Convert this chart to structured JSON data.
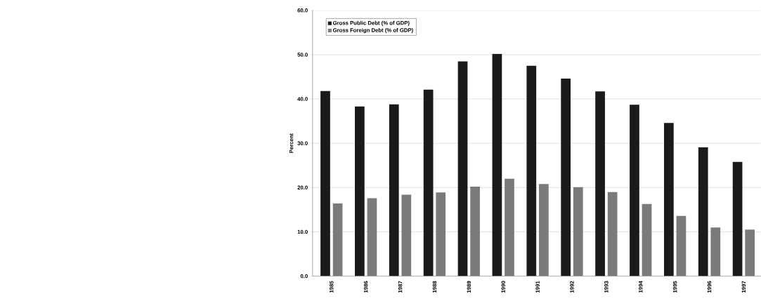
{
  "chart_data": {
    "type": "bar",
    "ylabel": "Percent",
    "categories": [
      "1985",
      "1986",
      "1987",
      "1988",
      "1989",
      "1990",
      "1991",
      "1992",
      "1993",
      "1994",
      "1995",
      "1996",
      "1997"
    ],
    "series": [
      {
        "name": "Gross Public Debt (% of GDP)",
        "color": "#1a1a1a",
        "values": [
          41.8,
          38.3,
          38.8,
          42.1,
          48.5,
          50.2,
          47.5,
          44.6,
          41.7,
          38.7,
          34.6,
          29.1,
          25.8
        ]
      },
      {
        "name": "Gross Foreign Debt (% of GDP)",
        "color": "#7a7a7a",
        "values": [
          16.4,
          17.6,
          18.4,
          18.9,
          20.2,
          22.0,
          20.8,
          20.1,
          19.0,
          16.3,
          13.6,
          11.0,
          10.5
        ]
      }
    ],
    "ylim": [
      0,
      60
    ],
    "yticks": [
      {
        "value": 0,
        "label": "0.0"
      },
      {
        "value": 10,
        "label": "10.0"
      },
      {
        "value": 20,
        "label": "20.0"
      },
      {
        "value": 30,
        "label": "30.0"
      },
      {
        "value": 40,
        "label": "40.0"
      },
      {
        "value": 50,
        "label": "50.0"
      },
      {
        "value": 60,
        "label": "60.0"
      }
    ],
    "grid": "y",
    "legend": "top left"
  }
}
